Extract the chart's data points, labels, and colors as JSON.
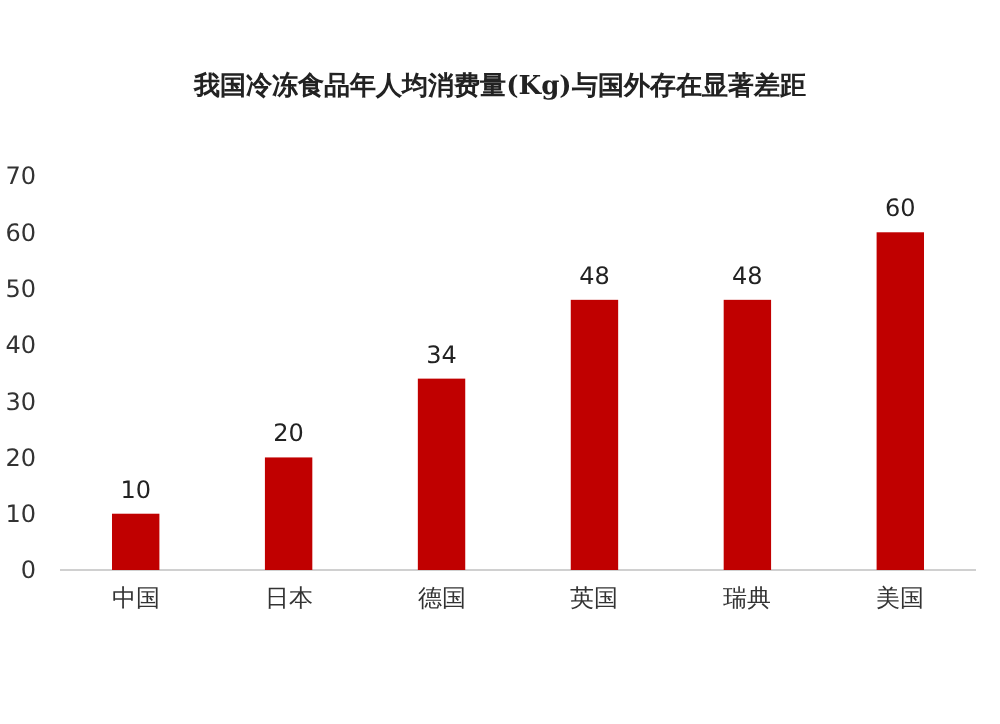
{
  "chart_data": {
    "type": "bar",
    "title": "我国冷冻食品年人均消费量(Kg)与国外存在显著差距",
    "categories": [
      "中国",
      "日本",
      "德国",
      "英国",
      "瑞典",
      "美国"
    ],
    "values": [
      10,
      20,
      34,
      48,
      48,
      60
    ],
    "color": "#c00000",
    "ylim": [
      0,
      70
    ],
    "yticks": [
      0,
      10,
      20,
      30,
      40,
      50,
      60,
      70
    ],
    "data_labels": true,
    "grid": false
  }
}
